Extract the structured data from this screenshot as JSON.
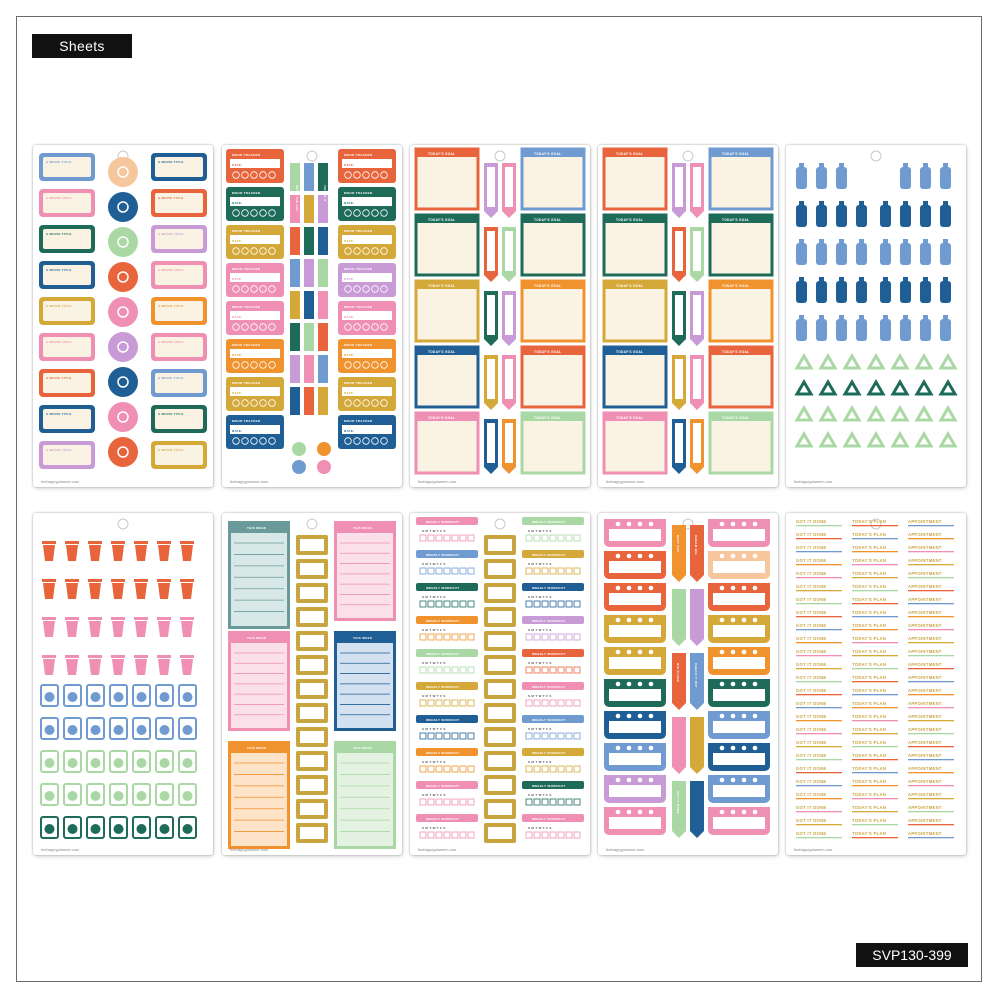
{
  "header": {
    "label": "Sheets"
  },
  "footer": {
    "sku": "SVP130-399"
  },
  "sheet_text": {
    "credit": "thehappyplanner.com",
    "movie": "A MOVIE TITLE",
    "mood": "MOOD TRACKER",
    "date": "DATE:",
    "today_goal": "TODAY'S GOAL",
    "todays_plan": "TODAY'S PLAN",
    "this_is_it": "THIS IS IT",
    "seize": "SEIZE THE DAY",
    "weekly": "WEEKLY WORKOUT",
    "smtwtfs": "S M T W T F S",
    "best_day": "BEST DAY",
    "dream_big": "DREAM BIG",
    "big_plans": "BIG PLANS",
    "check_it_out": "CHECK IT OUT",
    "got_it_done": "GOT IT DONE",
    "appointment": "APPOINTMENT",
    "this_week": "THIS WEEK"
  },
  "sheets": [
    {
      "id": "ticket-stickers"
    },
    {
      "id": "mood-tracker-stickers"
    },
    {
      "id": "todays-goal-stickers-a"
    },
    {
      "id": "todays-goal-stickers-b"
    },
    {
      "id": "bottle-recycle-stickers"
    },
    {
      "id": "trash-laundry-stickers"
    },
    {
      "id": "weekly-list-stickers"
    },
    {
      "id": "weekly-workout-stickers"
    },
    {
      "id": "heart-tracker-stickers"
    },
    {
      "id": "script-word-stickers"
    }
  ],
  "palette": {
    "coral": "#e8643c",
    "orange": "#f0922e",
    "mustard": "#d4a93a",
    "pink": "#ee8fb3",
    "lavender": "#c89ad6",
    "blue": "#6f9bd1",
    "navy": "#1f5f95",
    "teal": "#1f6b5a",
    "mint": "#a9d8a4",
    "peach": "#f6c69d",
    "gold": "#c9a542",
    "cream": "#faf3e3",
    "paper": "#ffffff"
  }
}
